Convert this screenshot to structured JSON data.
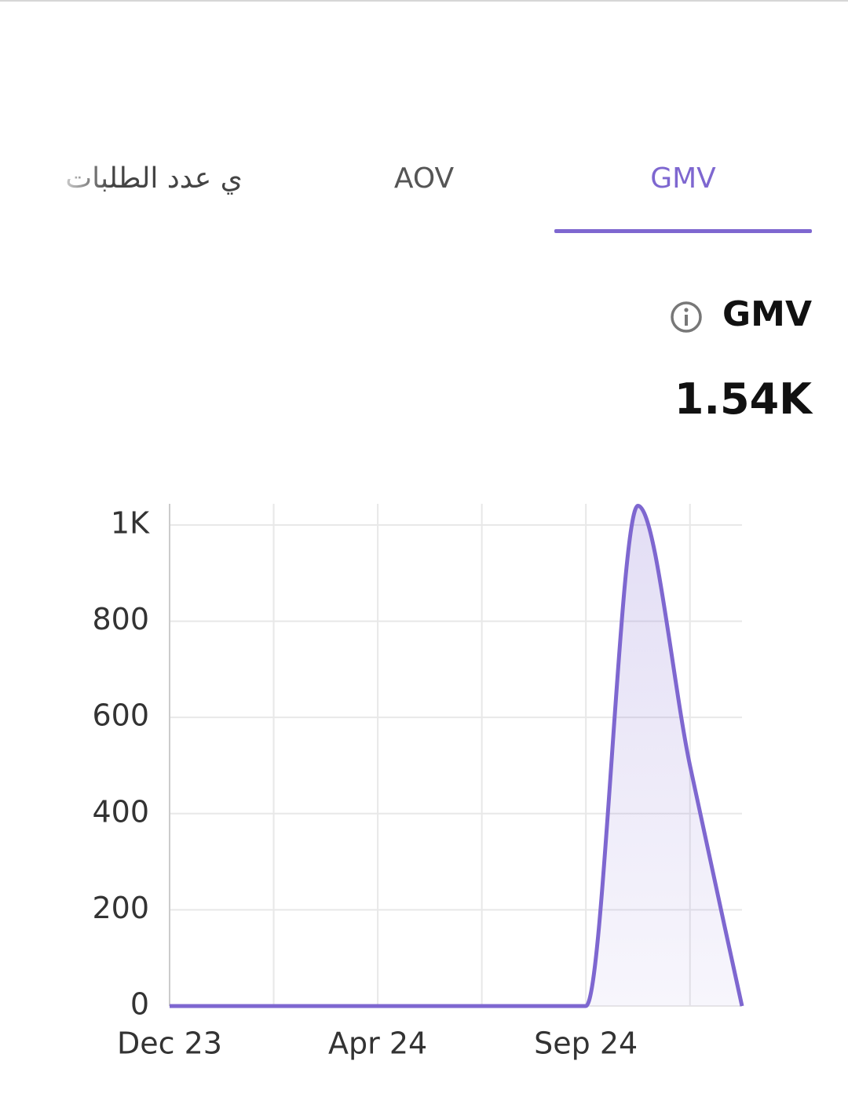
{
  "tabs": [
    "ي عدد الطلبات",
    "AOV",
    "GMV"
  ],
  "metric": {
    "name": "GMV",
    "value": "1.54K"
  },
  "chart_data": {
    "type": "area",
    "categories": [
      "Dec 23",
      null,
      null,
      null,
      "Apr 24",
      null,
      null,
      null,
      "Sep 24",
      null,
      null,
      null
    ],
    "series": [
      {
        "name": "GMV",
        "color": "#7e67d0",
        "values": [
          0,
          0,
          0,
          0,
          0,
          0,
          0,
          0,
          0,
          1040,
          500,
          0
        ]
      }
    ],
    "ylim": [
      0,
      1044
    ],
    "yticks": [
      0,
      200,
      400,
      600,
      800,
      {
        "value": 1000,
        "label": "1K"
      }
    ],
    "grid": true
  }
}
